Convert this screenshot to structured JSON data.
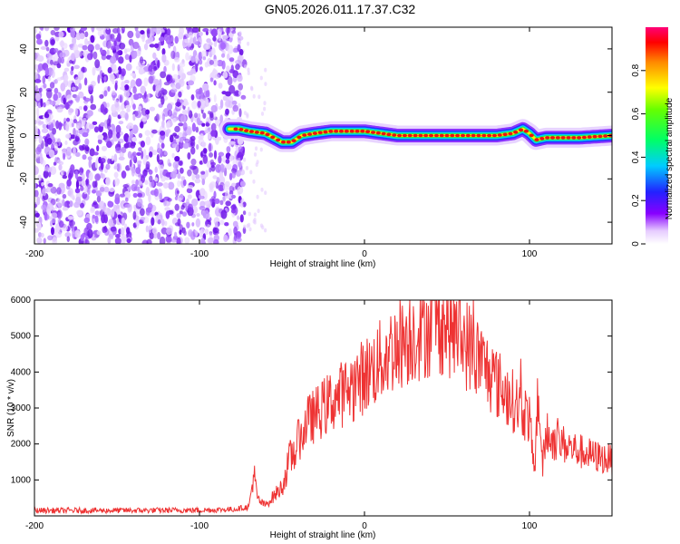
{
  "title": "GN05.2026.011.17.37.C32",
  "chart_data": [
    {
      "type": "heatmap",
      "title": "GN05.2026.011.17.37.C32",
      "xlabel": "Height of straight line (km)",
      "ylabel": "Frequency (Hz)",
      "xlim": [
        -200,
        150
      ],
      "ylim": [
        -50,
        50
      ],
      "x_ticks": [
        -200,
        -100,
        0,
        100
      ],
      "y_ticks": [
        -40,
        -20,
        0,
        20,
        40
      ],
      "noise_region_x": [
        -200,
        -76
      ],
      "signal_track": {
        "x": [
          -82,
          -76,
          -70,
          -60,
          -50,
          -44,
          -38,
          -30,
          -20,
          -10,
          0,
          10,
          20,
          40,
          60,
          80,
          90,
          96,
          100,
          104,
          110,
          130,
          150
        ],
        "y": [
          3,
          3,
          2,
          1,
          -3,
          -3,
          0,
          1,
          2,
          2,
          2,
          1,
          0,
          0,
          0,
          0,
          1,
          3,
          1,
          -2,
          -1,
          -1,
          0
        ]
      },
      "colorbar": {
        "label": "Normalized spectral amplitude",
        "range": [
          0,
          1
        ],
        "ticks": [
          0,
          0.2,
          0.4,
          0.6,
          0.8
        ]
      }
    },
    {
      "type": "line",
      "xlabel": "Height of straight line (km)",
      "ylabel": "SNR (10 * v/v)",
      "xlim": [
        -200,
        150
      ],
      "ylim": [
        0,
        6000
      ],
      "x_ticks": [
        -200,
        -100,
        0,
        100
      ],
      "y_ticks": [
        1000,
        2000,
        3000,
        4000,
        5000,
        6000
      ],
      "color": "#ee3333",
      "series": [
        {
          "name": "SNR",
          "x": [
            -200,
            -150,
            -100,
            -80,
            -70,
            -67,
            -65,
            -63,
            -60,
            -50,
            -45,
            -40,
            -35,
            -30,
            -20,
            -10,
            0,
            10,
            20,
            30,
            40,
            45,
            50,
            60,
            70,
            80,
            90,
            95,
            100,
            103,
            105,
            108,
            110,
            120,
            130,
            140,
            150
          ],
          "values": [
            150,
            150,
            160,
            180,
            250,
            1200,
            500,
            380,
            300,
            800,
            1600,
            2000,
            2600,
            2800,
            3200,
            3500,
            3900,
            4300,
            4800,
            5100,
            5300,
            5400,
            5350,
            4900,
            4300,
            3700,
            3200,
            3000,
            2700,
            1000,
            3500,
            1400,
            2200,
            2000,
            1800,
            1650,
            1550
          ]
        }
      ]
    }
  ]
}
